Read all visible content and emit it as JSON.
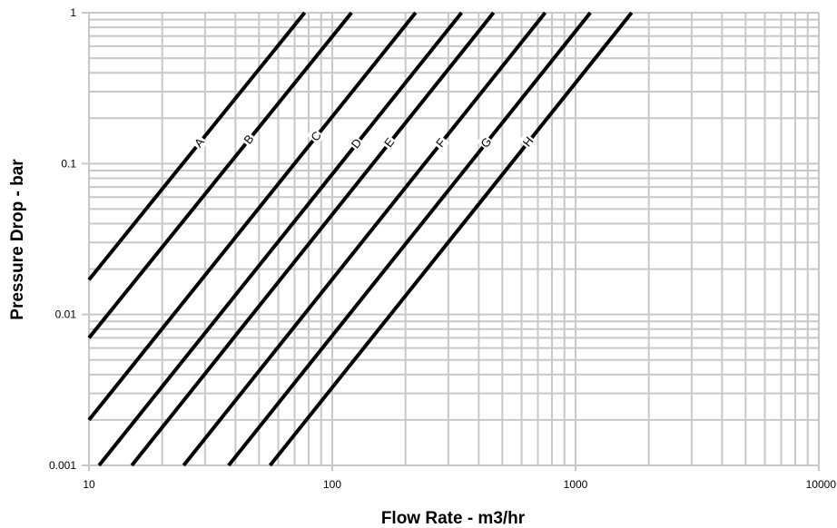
{
  "chart_data": {
    "type": "line",
    "xscale": "log",
    "yscale": "log",
    "xlim": [
      10,
      10000
    ],
    "ylim": [
      0.001,
      1
    ],
    "xlabel": "Flow Rate - m3/hr",
    "ylabel": "Pressure Drop - bar",
    "x_ticks": [
      "10",
      "100",
      "1000",
      "10000"
    ],
    "y_ticks": [
      "0.001",
      "0.01",
      "0.1",
      "1"
    ],
    "grid": true,
    "line_color": "#000000",
    "grid_color": "#c8c8c8",
    "series": [
      {
        "name": "A",
        "points": [
          [
            10,
            0.017
          ],
          [
            77,
            1
          ]
        ],
        "label_at": 28.5
      },
      {
        "name": "B",
        "points": [
          [
            10,
            0.007
          ],
          [
            120,
            1
          ]
        ],
        "label_at": 45.5
      },
      {
        "name": "C",
        "points": [
          [
            10,
            0.002
          ],
          [
            220,
            1
          ]
        ],
        "label_at": 86
      },
      {
        "name": "D",
        "points": [
          [
            11,
            0.001
          ],
          [
            340,
            1
          ]
        ],
        "label_at": 126
      },
      {
        "name": "E",
        "points": [
          [
            15,
            0.001
          ],
          [
            460,
            1
          ]
        ],
        "label_at": 172
      },
      {
        "name": "F",
        "points": [
          [
            24.5,
            0.001
          ],
          [
            750,
            1
          ]
        ],
        "label_at": 280
      },
      {
        "name": "G",
        "points": [
          [
            37.5,
            0.001
          ],
          [
            1150,
            1
          ]
        ],
        "label_at": 430
      },
      {
        "name": "H",
        "points": [
          [
            55.5,
            0.001
          ],
          [
            1700,
            1
          ]
        ],
        "label_at": 640
      }
    ]
  }
}
